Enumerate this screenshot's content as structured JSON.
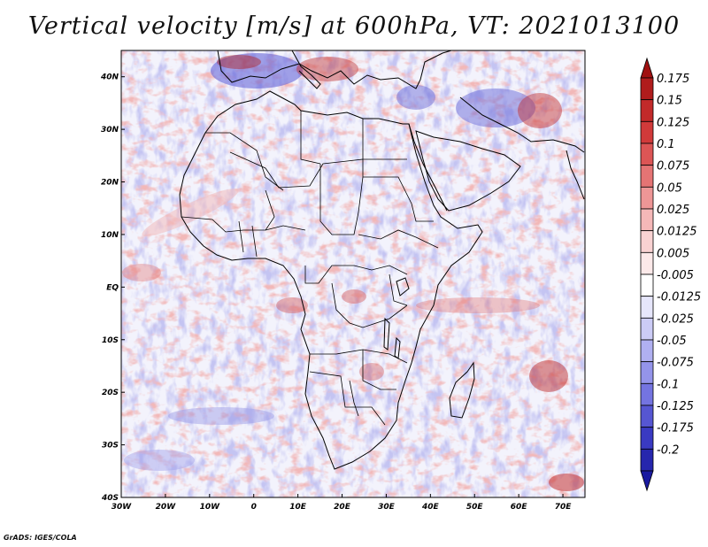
{
  "title": "Vertical velocity [m/s] at 600hPa, VT: 2021013100",
  "credit": "GrADS: IGES/COLA",
  "map": {
    "lon_range": [
      -30,
      75
    ],
    "lat_range": [
      -40,
      45
    ],
    "lon_ticks": [
      {
        "value": -30,
        "label": "30W"
      },
      {
        "value": -20,
        "label": "20W"
      },
      {
        "value": -10,
        "label": "10W"
      },
      {
        "value": 0,
        "label": "0"
      },
      {
        "value": 10,
        "label": "10E"
      },
      {
        "value": 20,
        "label": "20E"
      },
      {
        "value": 30,
        "label": "30E"
      },
      {
        "value": 40,
        "label": "40E"
      },
      {
        "value": 50,
        "label": "50E"
      },
      {
        "value": 60,
        "label": "60E"
      },
      {
        "value": 70,
        "label": "70E"
      }
    ],
    "lat_ticks": [
      {
        "value": 40,
        "label": "40N"
      },
      {
        "value": 30,
        "label": "30N"
      },
      {
        "value": 20,
        "label": "20N"
      },
      {
        "value": 10,
        "label": "10N"
      },
      {
        "value": 0,
        "label": "EQ"
      },
      {
        "value": -10,
        "label": "10S"
      },
      {
        "value": -20,
        "label": "20S"
      },
      {
        "value": -30,
        "label": "30S"
      },
      {
        "value": -40,
        "label": "40S"
      }
    ]
  },
  "colorbar": {
    "levels": [
      {
        "label": "0.175",
        "color": "#b01c1c"
      },
      {
        "label": "0.15",
        "color": "#c22a2a"
      },
      {
        "label": "0.125",
        "color": "#d13a3a"
      },
      {
        "label": "0.1",
        "color": "#dc5555"
      },
      {
        "label": "0.075",
        "color": "#e57474"
      },
      {
        "label": "0.05",
        "color": "#ee9696"
      },
      {
        "label": "0.025",
        "color": "#f5b8b8"
      },
      {
        "label": "0.0125",
        "color": "#f9d2d2"
      },
      {
        "label": "0.005",
        "color": "#fce9e9"
      },
      {
        "label": "-0.005",
        "color": "#ffffff"
      },
      {
        "label": "-0.0125",
        "color": "#e6e6fb"
      },
      {
        "label": "-0.025",
        "color": "#ccccf6"
      },
      {
        "label": "-0.05",
        "color": "#b0b0f1"
      },
      {
        "label": "-0.075",
        "color": "#9494ea"
      },
      {
        "label": "-0.1",
        "color": "#7474e0"
      },
      {
        "label": "-0.125",
        "color": "#5656d2"
      },
      {
        "label": "-0.175",
        "color": "#3a3ac2"
      },
      {
        "label": "-0.2",
        "color": "#2626ad"
      }
    ],
    "top_color": "#a01010",
    "bottom_color": "#1a1aa0"
  }
}
